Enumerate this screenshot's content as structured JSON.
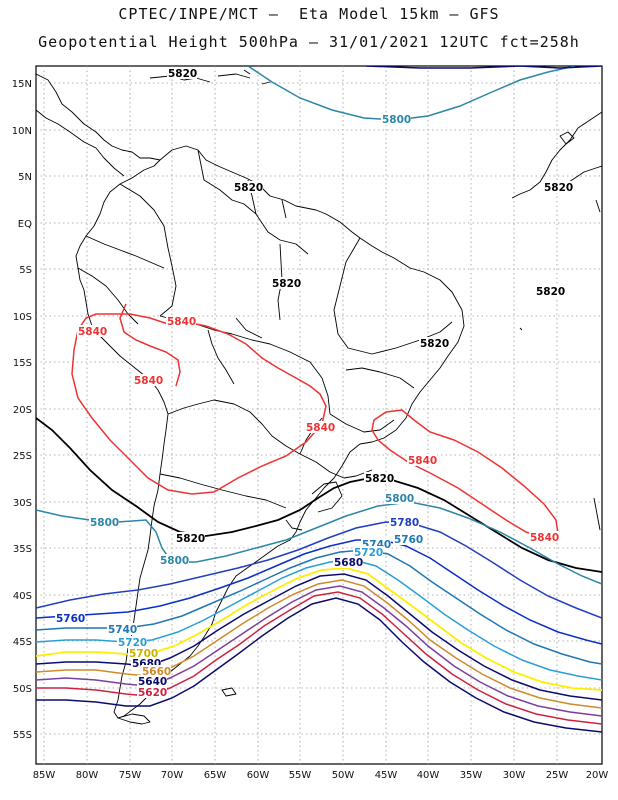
{
  "header": {
    "title_line1": "CPTEC/INPE/MCT –  Eta Model 15km – GFS",
    "title_line2": "Geopotential Height 500hPa – 31/01/2021 12UTC fct=258h"
  },
  "axes": {
    "lon_labels": [
      "85W",
      "80W",
      "75W",
      "70W",
      "65W",
      "60W",
      "55W",
      "50W",
      "45W",
      "40W",
      "35W",
      "30W",
      "25W",
      "20W"
    ],
    "lat_labels": [
      "15N",
      "10N",
      "5N",
      "EQ",
      "5S",
      "10S",
      "15S",
      "20S",
      "25S",
      "30S",
      "35S",
      "40S",
      "45S",
      "50S",
      "55S"
    ]
  },
  "colors": {
    "c5680": "#0b0b6e",
    "c5700": "#ffee00",
    "c5720": "#2a9fd6",
    "c5740": "#1f77b4",
    "c5760": "#0a2ec8",
    "c5780": "#1f3fbf",
    "c5800": "#2b86a8",
    "c5820": "#000000",
    "c5840": "#ee3333",
    "c5660": "#d08a2a",
    "c5640": "#7a3fa0",
    "c5620": "#cc2244",
    "coast": "#000000",
    "grid": "#9a9a9a"
  },
  "contour_labels": {
    "l5820_a": "5820",
    "l5820_b": "5820",
    "l5820_c": "5820",
    "l5820_d": "5820",
    "l5820_e": "5820",
    "l5820_f": "5820",
    "l5820_g": "5820",
    "l5820_h": "5820",
    "l5800_a": "5800",
    "l5800_b": "5800",
    "l5800_c": "5800",
    "l5800_d": "5800",
    "l5840_a": "5840",
    "l5840_b": "5840",
    "l5840_c": "5840",
    "l5840_d": "5840",
    "l5840_e": "5840",
    "l5840_f": "5840",
    "l5780": "5780",
    "l5760_a": "5760",
    "l5760_b": "5760",
    "l5740_a": "5740",
    "l5740_b": "5740",
    "l5720_a": "5720",
    "l5720_b": "5720",
    "l5700": "5700",
    "l5680_a": "5680",
    "l5680_b": "5680",
    "l5660": "5660",
    "l5640": "5640",
    "l5620": "5620"
  }
}
